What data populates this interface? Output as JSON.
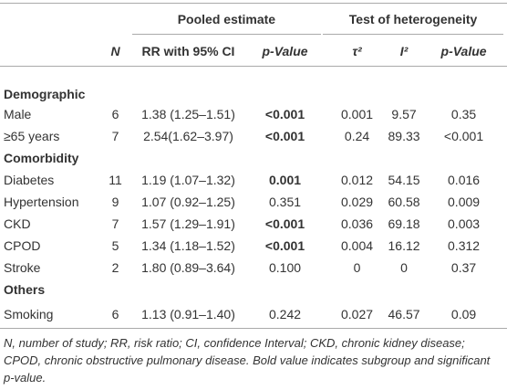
{
  "table": {
    "group_headers": [
      "Pooled estimate",
      "Test of heterogeneity"
    ],
    "columns": [
      "N",
      "RR with 95% CI",
      "p-Value",
      "τ²",
      "I²",
      "p-Value"
    ],
    "sections": [
      {
        "name": "Demographic",
        "rows": [
          {
            "label": "Male",
            "cells": [
              "6",
              "1.38 (1.25–1.51)",
              "<0.001",
              "0.001",
              "9.57",
              "0.35"
            ],
            "p_bold": true
          },
          {
            "label": "≥65 years",
            "cells": [
              "7",
              "2.54(1.62–3.97)",
              "<0.001",
              "0.24",
              "89.33",
              "<0.001"
            ],
            "p_bold": true
          }
        ]
      },
      {
        "name": "Comorbidity",
        "rows": [
          {
            "label": "Diabetes",
            "cells": [
              "11",
              "1.19 (1.07–1.32)",
              "0.001",
              "0.012",
              "54.15",
              "0.016"
            ],
            "p_bold": true
          },
          {
            "label": "Hypertension",
            "cells": [
              "9",
              "1.07 (0.92–1.25)",
              "0.351",
              "0.029",
              "60.58",
              "0.009"
            ],
            "p_bold": false
          },
          {
            "label": "CKD",
            "cells": [
              "7",
              "1.57 (1.29–1.91)",
              "<0.001",
              "0.036",
              "69.18",
              "0.003"
            ],
            "p_bold": true
          },
          {
            "label": "CPOD",
            "cells": [
              "5",
              "1.34 (1.18–1.52)",
              "<0.001",
              "0.004",
              "16.12",
              "0.312"
            ],
            "p_bold": true
          },
          {
            "label": "Stroke",
            "cells": [
              "2",
              "1.80 (0.89–3.64)",
              "0.100",
              "0",
              "0",
              "0.37"
            ],
            "p_bold": false
          }
        ]
      },
      {
        "name": "Others",
        "rows": [
          {
            "label": "Smoking",
            "cells": [
              "6",
              "1.13 (0.91–1.40)",
              "0.242",
              "0.027",
              "46.57",
              "0.09"
            ],
            "p_bold": false
          }
        ]
      }
    ],
    "note": "N, number of study; RR, risk ratio; CI, confidence Interval; CKD, chronic kidney disease; CPOD, chronic obstructive pulmonary disease. Bold value indicates subgroup and significant p-value."
  }
}
